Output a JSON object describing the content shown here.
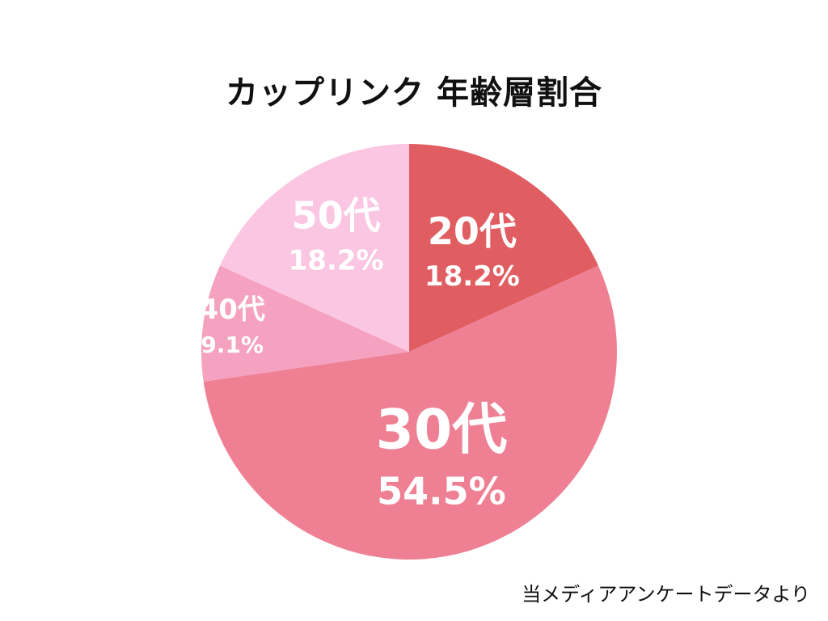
{
  "chart_data": {
    "type": "pie",
    "title": "カップリンク 年齢層割合",
    "categories": [
      "20代",
      "30代",
      "40代",
      "50代"
    ],
    "values": [
      18.2,
      54.5,
      9.1,
      18.2
    ],
    "value_labels": [
      "18.2%",
      "54.5%",
      "9.1%",
      "18.2%"
    ],
    "colors": [
      "#e05d61",
      "#ef8094",
      "#f4a2bf",
      "#fbc6e2"
    ],
    "start_angle_deg": 0,
    "direction": "clockwise",
    "legend": "none",
    "grid": false
  },
  "footer": {
    "source": "当メディアアンケートデータより"
  }
}
